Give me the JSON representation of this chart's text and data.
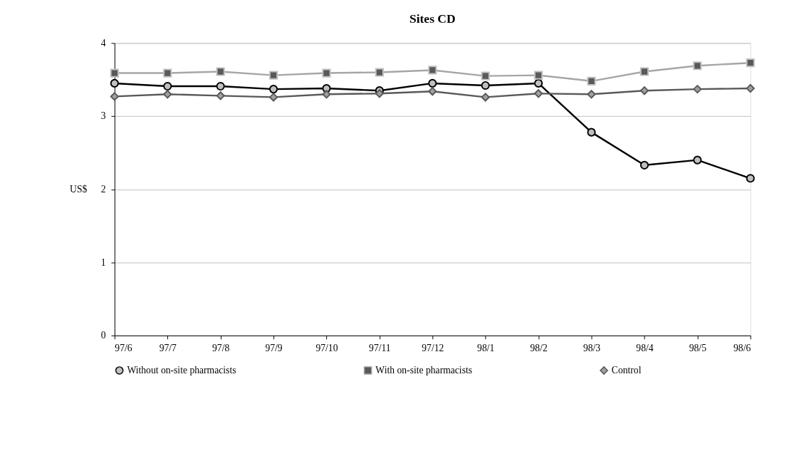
{
  "chart_data": {
    "type": "line",
    "title": "Sites CD",
    "ylabel": "US$",
    "categories": [
      "97/6",
      "97/7",
      "97/8",
      "97/9",
      "97/10",
      "97/11",
      "97/12",
      "98/1",
      "98/2",
      "98/3",
      "98/4",
      "98/5",
      "98/6"
    ],
    "series": [
      {
        "name": "Without on-site pharmacists",
        "color": "#000000",
        "marker": "circle",
        "values": [
          3.45,
          3.41,
          3.41,
          3.37,
          3.38,
          3.35,
          3.45,
          3.42,
          3.45,
          2.78,
          2.33,
          2.4,
          2.15
        ]
      },
      {
        "name": "With on-site pharmacists",
        "color": "#a6a6a6",
        "marker": "square",
        "values": [
          3.59,
          3.59,
          3.61,
          3.56,
          3.59,
          3.6,
          3.63,
          3.55,
          3.56,
          3.48,
          3.61,
          3.69,
          3.73
        ]
      },
      {
        "name": "Control",
        "color": "#595959",
        "marker": "diamond",
        "values": [
          3.27,
          3.3,
          3.28,
          3.26,
          3.3,
          3.31,
          3.34,
          3.26,
          3.31,
          3.3,
          3.35,
          3.37,
          3.38
        ]
      }
    ],
    "ylim": [
      0,
      4
    ],
    "yticks": [
      0,
      1,
      2,
      3,
      4
    ],
    "grid": "y",
    "legend": "bottom",
    "line_style": "solid"
  }
}
